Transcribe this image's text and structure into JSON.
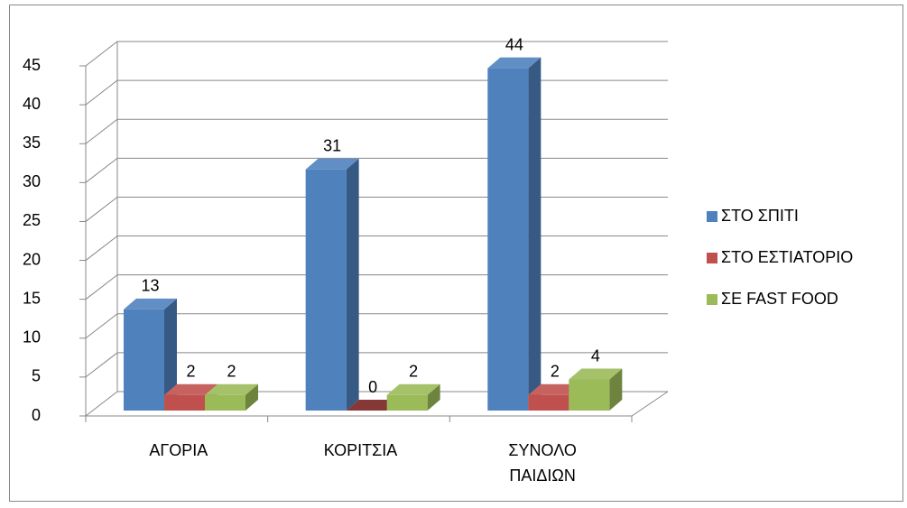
{
  "chart_data": {
    "type": "bar3d",
    "categories": [
      "ΑΓΟΡΙΑ",
      "ΚΟΡΙΤΣΙΑ",
      "ΣΥΝΟΛΟ ΠΑΙΔΙΩΝ"
    ],
    "series": [
      {
        "name": "ΣΤΟ ΣΠΙΤΙ",
        "color": "#4f81bd",
        "values": [
          13,
          31,
          44
        ]
      },
      {
        "name": "ΣΤΟ ΕΣΤΙΑΤΟΡΙΟ",
        "color": "#c0504d",
        "values": [
          2,
          0,
          2
        ]
      },
      {
        "name": "ΣΕ FAST FOOD",
        "color": "#9bbb59",
        "values": [
          2,
          2,
          4
        ]
      }
    ],
    "ylim": [
      0,
      45
    ],
    "yticks": [
      0,
      5,
      10,
      15,
      20,
      25,
      30,
      35,
      40,
      45
    ],
    "grid": true,
    "legend": "right"
  }
}
